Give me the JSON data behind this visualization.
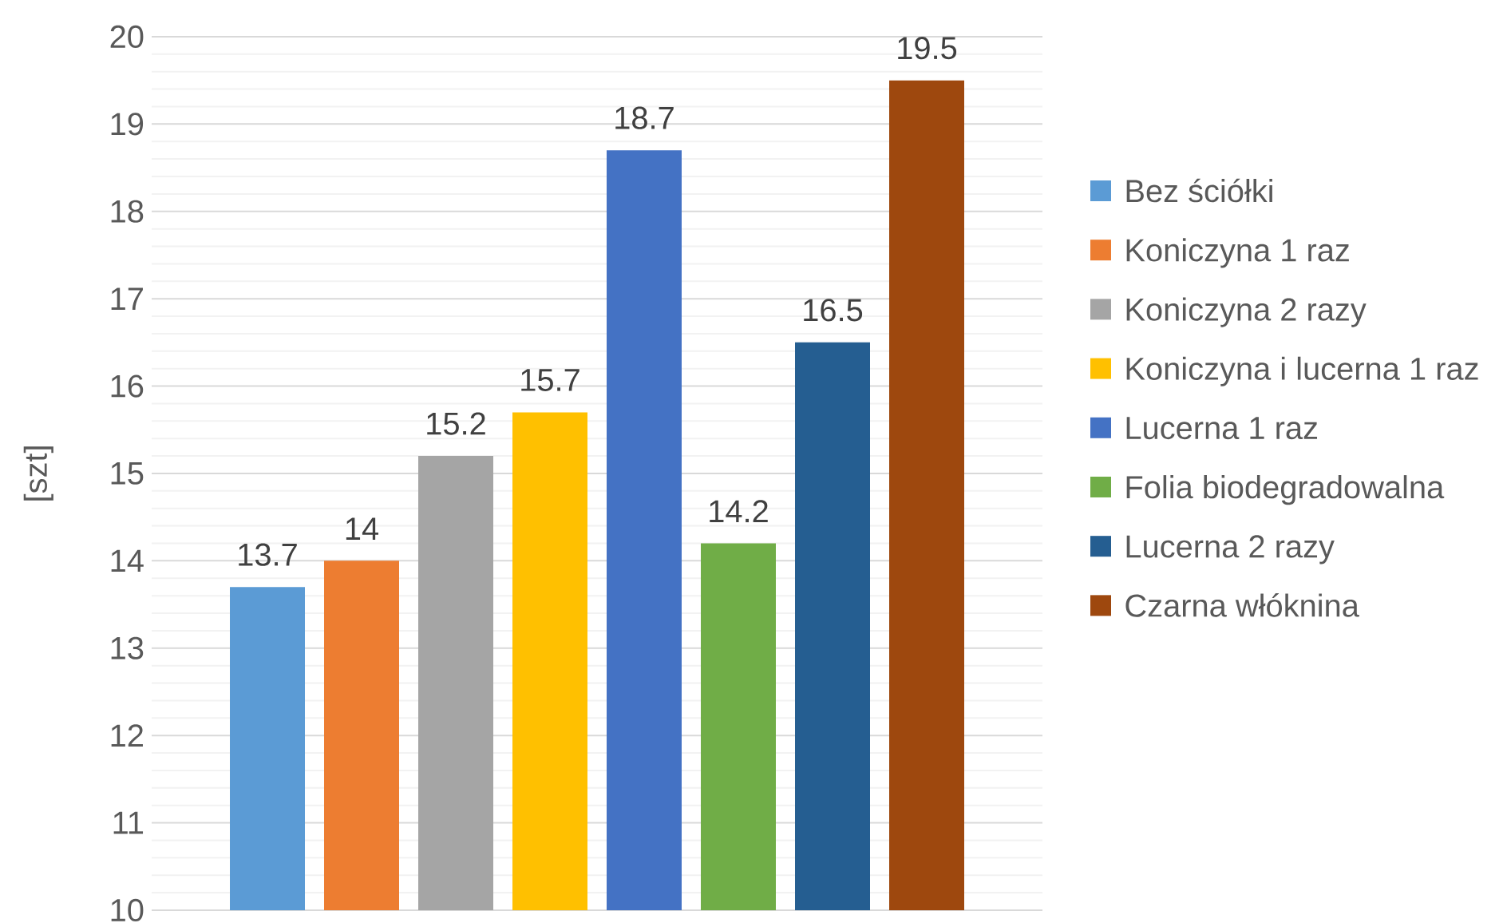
{
  "chart_data": {
    "type": "bar",
    "ylabel": "[szt]",
    "categories": [
      null
    ],
    "series": [
      {
        "name": "Bez ściółki",
        "color": "#5b9bd5",
        "values": [
          13.7
        ]
      },
      {
        "name": "Koniczyna 1 raz",
        "color": "#ed7d31",
        "values": [
          14
        ]
      },
      {
        "name": "Koniczyna 2 razy",
        "color": "#a5a5a5",
        "values": [
          15.2
        ]
      },
      {
        "name": "Koniczyna i lucerna 1 raz",
        "color": "#ffc000",
        "values": [
          15.7
        ]
      },
      {
        "name": "Lucerna 1 raz",
        "color": "#4472c4",
        "values": [
          18.7
        ]
      },
      {
        "name": "Folia biodegradowalna",
        "color": "#70ad47",
        "values": [
          14.2
        ]
      },
      {
        "name": "Lucerna 2 razy",
        "color": "#255e91",
        "values": [
          16.5
        ]
      },
      {
        "name": "Czarna włóknina",
        "color": "#9e480e",
        "values": [
          19.5
        ]
      }
    ],
    "ylim": [
      10,
      20
    ],
    "yticks": [
      10,
      {
        "value": 10.2,
        "label": null
      },
      {
        "value": 10.4,
        "label": null
      },
      {
        "value": 10.6,
        "label": null
      },
      {
        "value": 10.8,
        "label": null
      },
      11,
      {
        "value": 11.2,
        "label": null
      },
      {
        "value": 11.4,
        "label": null
      },
      {
        "value": 11.6,
        "label": null
      },
      {
        "value": 11.8,
        "label": null
      },
      12,
      {
        "value": 12.2,
        "label": null
      },
      {
        "value": 12.4,
        "label": null
      },
      {
        "value": 12.6,
        "label": null
      },
      {
        "value": 12.8,
        "label": null
      },
      13,
      {
        "value": 13.2,
        "label": null
      },
      {
        "value": 13.4,
        "label": null
      },
      {
        "value": 13.6,
        "label": null
      },
      {
        "value": 13.8,
        "label": null
      },
      14,
      {
        "value": 14.2,
        "label": null
      },
      {
        "value": 14.4,
        "label": null
      },
      {
        "value": 14.6,
        "label": null
      },
      {
        "value": 14.8,
        "label": null
      },
      15,
      {
        "value": 15.2,
        "label": null
      },
      {
        "value": 15.4,
        "label": null
      },
      {
        "value": 15.6,
        "label": null
      },
      {
        "value": 15.8,
        "label": null
      },
      16,
      {
        "value": 16.2,
        "label": null
      },
      {
        "value": 16.4,
        "label": null
      },
      {
        "value": 16.6,
        "label": null
      },
      {
        "value": 16.8,
        "label": null
      },
      17,
      {
        "value": 17.2,
        "label": null
      },
      {
        "value": 17.4,
        "label": null
      },
      {
        "value": 17.6,
        "label": null
      },
      {
        "value": 17.8,
        "label": null
      },
      18,
      {
        "value": 18.2,
        "label": null
      },
      {
        "value": 18.4,
        "label": null
      },
      {
        "value": 18.6,
        "label": null
      },
      {
        "value": 18.8,
        "label": null
      },
      19,
      {
        "value": 19.2,
        "label": null
      },
      {
        "value": 19.4,
        "label": null
      },
      {
        "value": 19.6,
        "label": null
      },
      {
        "value": 19.8,
        "label": null
      },
      20
    ],
    "grid": "y",
    "legend": "right",
    "data_labels": true
  }
}
